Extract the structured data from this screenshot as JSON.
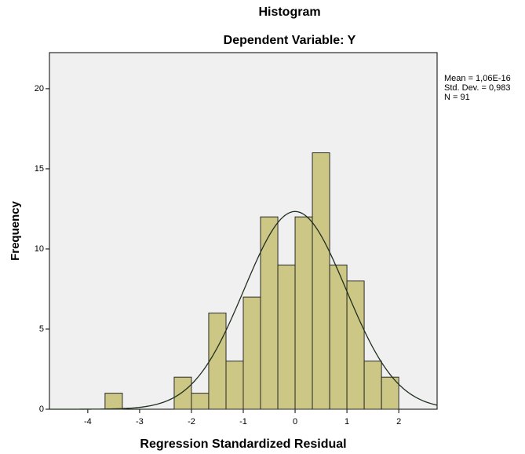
{
  "chart_data": {
    "type": "histogram",
    "title": "Histogram",
    "subtitle": "Dependent Variable: Y",
    "x_label": "Regression Standardized Residual",
    "y_label": "Frequency",
    "bins": [
      -3.667,
      -3.333,
      -3,
      -2.667,
      -2.333,
      -2,
      -1.667,
      -1.333,
      -1,
      -0.667,
      -0.333,
      0,
      0.333,
      0.667,
      1,
      1.333,
      1.667,
      2
    ],
    "values": [
      1,
      0,
      0,
      0,
      2,
      1,
      6,
      3,
      7,
      12,
      9,
      12,
      16,
      9,
      8,
      3,
      2
    ],
    "color": "#cdc785",
    "curve_color": "#1f2f1f",
    "stats": {
      "mean": {
        "value": 1.06e-16,
        "label": "Mean = 1,06E-16"
      },
      "std_dev": {
        "value": 0.983,
        "label": "Std. Dev. = 0,983"
      },
      "n": {
        "value": 91,
        "label": "N = 91"
      }
    },
    "xlim": [
      -4.74,
      2.74
    ],
    "ylim": [
      0,
      22.25
    ],
    "xticks": [
      -4,
      -3,
      -2,
      -1,
      0,
      1,
      2
    ],
    "yticks": [
      0,
      5,
      10,
      15,
      20
    ]
  }
}
